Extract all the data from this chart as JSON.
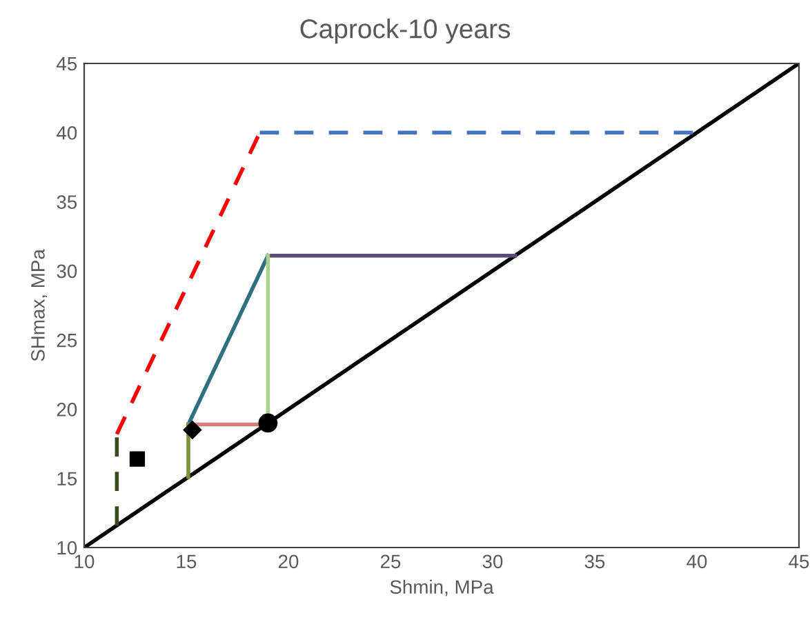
{
  "chart_data": {
    "type": "line",
    "title": "Caprock-10 years",
    "xlabel": "Shmin, MPa",
    "ylabel": "SHmax, MPa",
    "xlim": [
      10,
      45
    ],
    "ylim": [
      10,
      45
    ],
    "xticks": [
      10,
      15,
      20,
      25,
      30,
      35,
      40,
      45
    ],
    "yticks": [
      10,
      15,
      20,
      25,
      30,
      35,
      40,
      45
    ],
    "grid": false,
    "legend": false,
    "series": [
      {
        "color": "#000000",
        "x": [
          10,
          45
        ],
        "values": [
          10,
          45
        ],
        "line_style": "solid"
      },
      {
        "color": "#ff0000",
        "x": [
          11.6,
          18.6
        ],
        "values": [
          18.2,
          40
        ],
        "line_style": "dashed"
      },
      {
        "color": "#4472c4",
        "x": [
          18.6,
          40
        ],
        "values": [
          40,
          40
        ],
        "line_style": "dashed"
      },
      {
        "color": "#3a4a20",
        "x": [
          11.6,
          11.6
        ],
        "values": [
          11.6,
          18.2
        ],
        "line_style": "dashed"
      },
      {
        "color": "#2e7082",
        "x": [
          15.1,
          19
        ],
        "values": [
          18.9,
          31.1
        ],
        "line_style": "solid"
      },
      {
        "color": "#5a4a78",
        "x": [
          19,
          31.1
        ],
        "values": [
          31.1,
          31.1
        ],
        "line_style": "solid"
      },
      {
        "color": "#a9d18e",
        "x": [
          19,
          19
        ],
        "values": [
          19,
          31.1
        ],
        "line_style": "solid"
      },
      {
        "color": "#d08080",
        "x": [
          15.1,
          19
        ],
        "values": [
          18.9,
          18.9
        ],
        "line_style": "solid"
      },
      {
        "color": "#77933c",
        "x": [
          15.1,
          15.1
        ],
        "values": [
          15.1,
          18.9
        ],
        "line_style": "solid"
      },
      {
        "type": "scatter",
        "color": "#000000",
        "x": [
          19
        ],
        "values": [
          19
        ],
        "marker": "circle"
      },
      {
        "type": "scatter",
        "color": "#000000",
        "x": [
          15.3
        ],
        "values": [
          18.5
        ],
        "marker": "diamond"
      },
      {
        "type": "scatter",
        "color": "#000000",
        "x": [
          12.6
        ],
        "values": [
          16.4
        ],
        "marker": "square"
      }
    ]
  }
}
